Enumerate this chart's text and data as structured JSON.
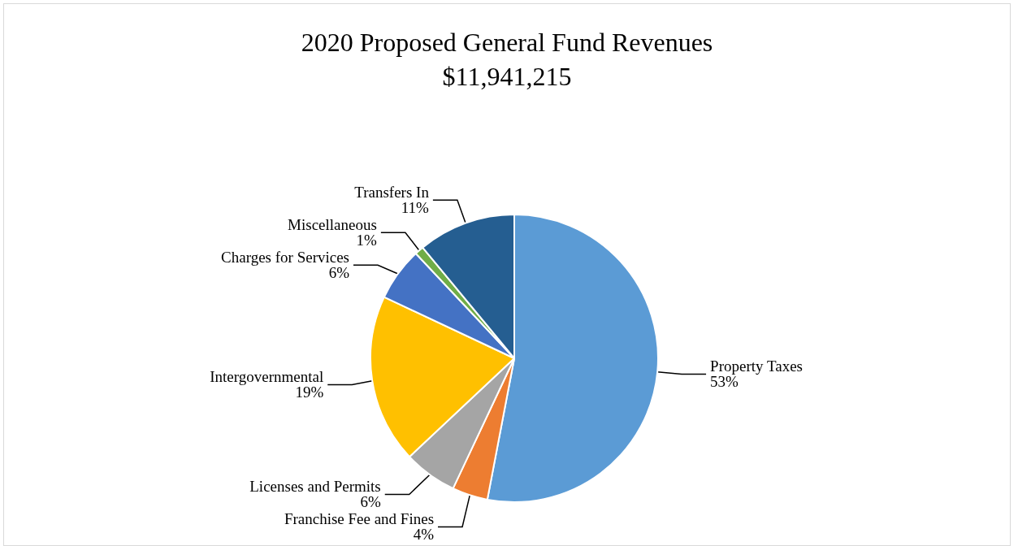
{
  "chart_data": {
    "type": "pie",
    "title": "2020 Proposed General Fund Revenues",
    "subtitle": "$11,941,215",
    "categories": [
      "Property Taxes",
      "Franchise Fee and Fines",
      "Licenses and Permits",
      "Intergovernmental",
      "Charges for Services",
      "Miscellaneous",
      "Transfers In"
    ],
    "values": [
      53,
      4,
      6,
      19,
      6,
      1,
      11
    ],
    "colors": [
      "#5b9bd5",
      "#ed7d31",
      "#a5a5a5",
      "#ffc000",
      "#4472c4",
      "#70ad47",
      "#255e91"
    ],
    "value_labels": [
      "53%",
      "4%",
      "6%",
      "19%",
      "6%",
      "1%",
      "11%"
    ],
    "legend": false
  }
}
